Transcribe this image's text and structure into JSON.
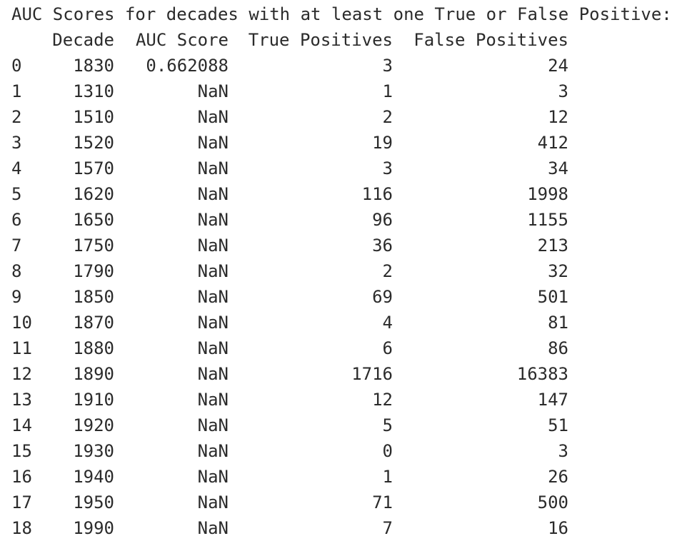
{
  "title": "AUC Scores for decades with at least one True or False Positive:",
  "columns": [
    "Decade",
    "AUC Score",
    "True Positives",
    "False Positives"
  ],
  "rows": [
    {
      "index": "0",
      "decade": "1830",
      "auc": "0.662088",
      "tp": "3",
      "fp": "24"
    },
    {
      "index": "1",
      "decade": "1310",
      "auc": "NaN",
      "tp": "1",
      "fp": "3"
    },
    {
      "index": "2",
      "decade": "1510",
      "auc": "NaN",
      "tp": "2",
      "fp": "12"
    },
    {
      "index": "3",
      "decade": "1520",
      "auc": "NaN",
      "tp": "19",
      "fp": "412"
    },
    {
      "index": "4",
      "decade": "1570",
      "auc": "NaN",
      "tp": "3",
      "fp": "34"
    },
    {
      "index": "5",
      "decade": "1620",
      "auc": "NaN",
      "tp": "116",
      "fp": "1998"
    },
    {
      "index": "6",
      "decade": "1650",
      "auc": "NaN",
      "tp": "96",
      "fp": "1155"
    },
    {
      "index": "7",
      "decade": "1750",
      "auc": "NaN",
      "tp": "36",
      "fp": "213"
    },
    {
      "index": "8",
      "decade": "1790",
      "auc": "NaN",
      "tp": "2",
      "fp": "32"
    },
    {
      "index": "9",
      "decade": "1850",
      "auc": "NaN",
      "tp": "69",
      "fp": "501"
    },
    {
      "index": "10",
      "decade": "1870",
      "auc": "NaN",
      "tp": "4",
      "fp": "81"
    },
    {
      "index": "11",
      "decade": "1880",
      "auc": "NaN",
      "tp": "6",
      "fp": "86"
    },
    {
      "index": "12",
      "decade": "1890",
      "auc": "NaN",
      "tp": "1716",
      "fp": "16383"
    },
    {
      "index": "13",
      "decade": "1910",
      "auc": "NaN",
      "tp": "12",
      "fp": "147"
    },
    {
      "index": "14",
      "decade": "1920",
      "auc": "NaN",
      "tp": "5",
      "fp": "51"
    },
    {
      "index": "15",
      "decade": "1930",
      "auc": "NaN",
      "tp": "0",
      "fp": "3"
    },
    {
      "index": "16",
      "decade": "1940",
      "auc": "NaN",
      "tp": "1",
      "fp": "26"
    },
    {
      "index": "17",
      "decade": "1950",
      "auc": "NaN",
      "tp": "71",
      "fp": "500"
    },
    {
      "index": "18",
      "decade": "1990",
      "auc": "NaN",
      "tp": "7",
      "fp": "16"
    }
  ]
}
